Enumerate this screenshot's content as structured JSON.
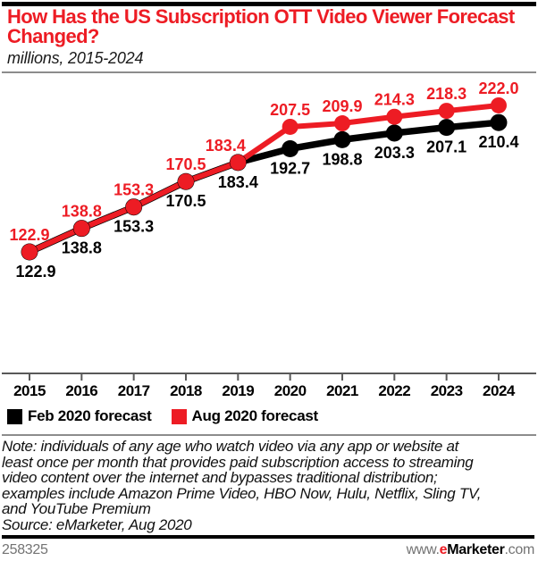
{
  "header": {
    "title": "How Has the US Subscription OTT Video Viewer Forecast Changed?",
    "subtitle": "millions, 2015-2024"
  },
  "colors": {
    "accent_red": "#ed1c24",
    "series_black": "#000000",
    "axis_gray": "#595959",
    "divider_gray": "#8c8c8c",
    "footer_gray": "#737373"
  },
  "chart_data": {
    "type": "line",
    "title": "How Has the US Subscription OTT Video Viewer Forecast Changed?",
    "subtitle": "millions, 2015-2024",
    "categories": [
      "2015",
      "2016",
      "2017",
      "2018",
      "2019",
      "2020",
      "2021",
      "2022",
      "2023",
      "2024"
    ],
    "series": [
      {
        "name": "Feb 2020 forecast",
        "color": "#000000",
        "values": [
          122.9,
          138.8,
          153.3,
          170.5,
          183.4,
          192.7,
          198.8,
          203.3,
          207.1,
          210.4
        ]
      },
      {
        "name": "Aug 2020 forecast",
        "color": "#ed1c24",
        "values": [
          122.9,
          138.8,
          153.3,
          170.5,
          183.4,
          207.5,
          209.9,
          214.3,
          218.3,
          222.0
        ]
      }
    ],
    "xlabel": "",
    "ylabel": "millions",
    "ylim": [
      110,
      235
    ],
    "grid": false,
    "data_labels": true,
    "legend_position": "bottom"
  },
  "legend": {
    "items": [
      {
        "label": "Feb 2020 forecast",
        "color": "#000000"
      },
      {
        "label": "Aug 2020 forecast",
        "color": "#ed1c24"
      }
    ]
  },
  "note": {
    "lines": [
      "Note: individuals of any age who watch video via any app or website at",
      "least once per month that provides paid subscription access to streaming",
      "video content over the internet and bypasses traditional distribution;",
      "examples include Amazon Prime Video, HBO Now, Hulu, Netflix, Sling TV,",
      "and YouTube Premium"
    ],
    "source": "Source: eMarketer, Aug 2020"
  },
  "footer": {
    "chart_id": "258325",
    "url_prefix": "www.",
    "brand_e": "e",
    "brand_rest": "Marketer",
    "url_suffix": ".com"
  }
}
